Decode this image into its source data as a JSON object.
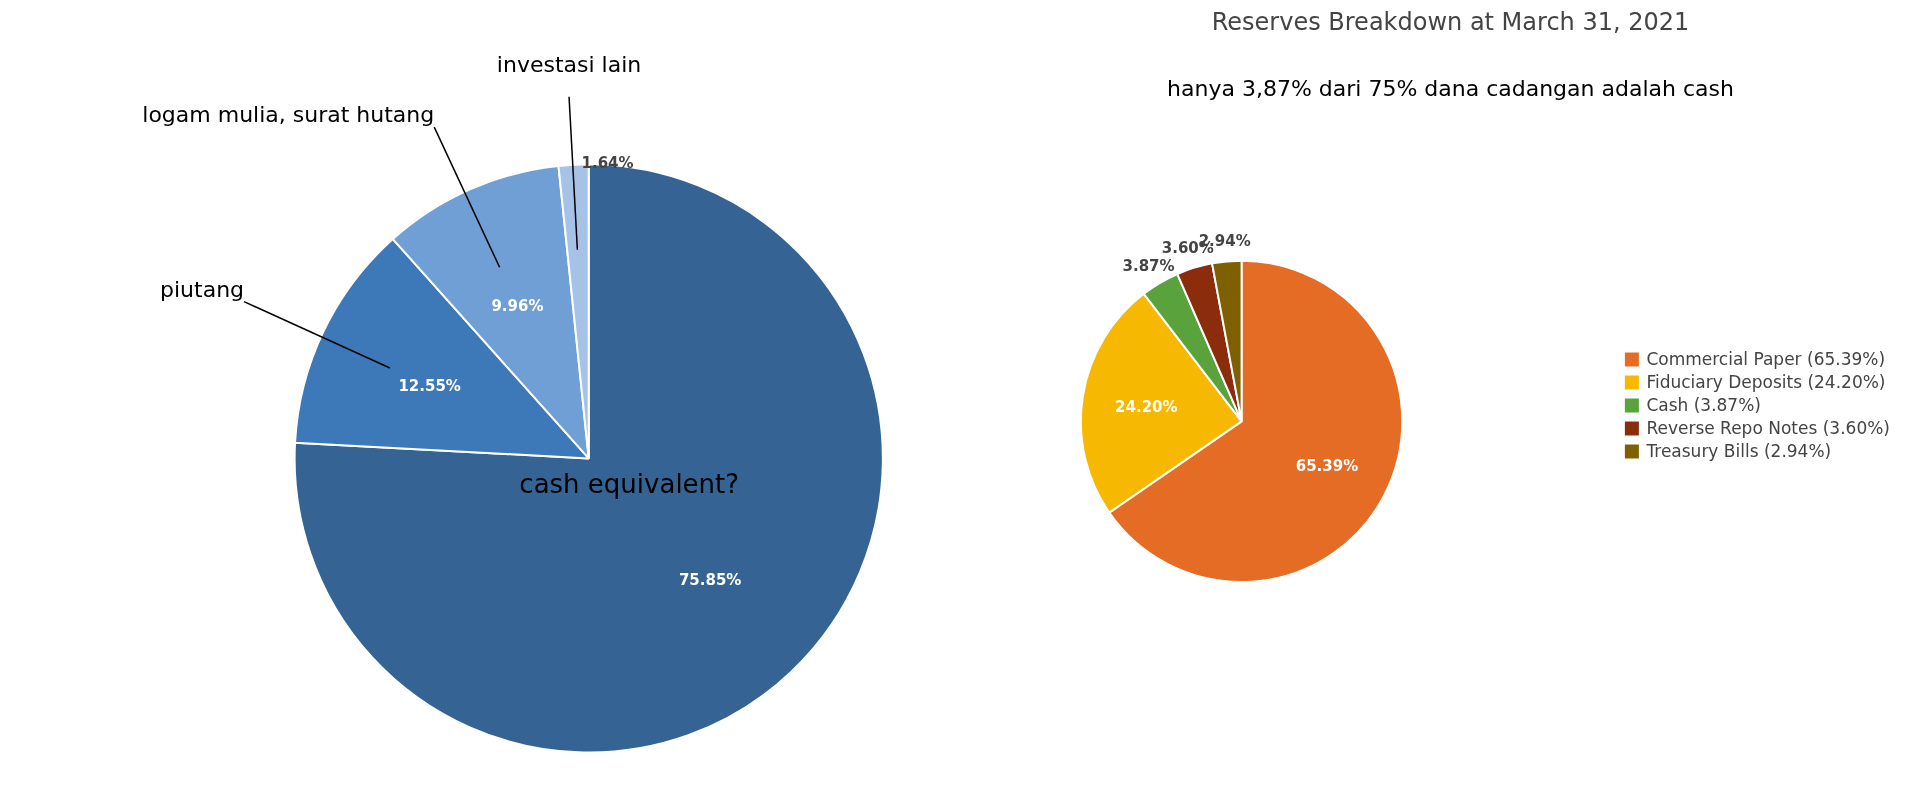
{
  "chart_data": [
    {
      "type": "pie",
      "categories": [
        "cash equivalent?",
        "piutang",
        "logam mulia, surat hutang",
        "investasi lain"
      ],
      "values": [
        75.85,
        12.55,
        9.96,
        1.64
      ],
      "colors": [
        "#356494",
        "#3d78b8",
        "#6f9fd4",
        "#a6c2e6"
      ],
      "value_labels": [
        "75.85%",
        "12.55%",
        "9.96%",
        "1.64%"
      ],
      "legend": false
    },
    {
      "type": "pie",
      "title": "Reserves Breakdown at March 31, 2021",
      "annotations": [
        "hanya 3,87% dari 75% dana cadangan adalah cash"
      ],
      "categories": [
        "Commercial Paper (65.39%)",
        "Fiduciary Deposits (24.20%)",
        "Cash (3.87%)",
        "Reverse Repo Notes (3.60%)",
        "Treasury Bills (2.94%)"
      ],
      "values": [
        65.39,
        24.2,
        3.87,
        3.6,
        2.94
      ],
      "colors": [
        "#e46c25",
        "#f6b800",
        "#5aa33c",
        "#8b2c0c",
        "#7f6000"
      ],
      "value_labels": [
        "65.39%",
        "24.20%",
        "3.87%",
        "3.60%",
        "2.94%"
      ],
      "legend": "right"
    }
  ]
}
